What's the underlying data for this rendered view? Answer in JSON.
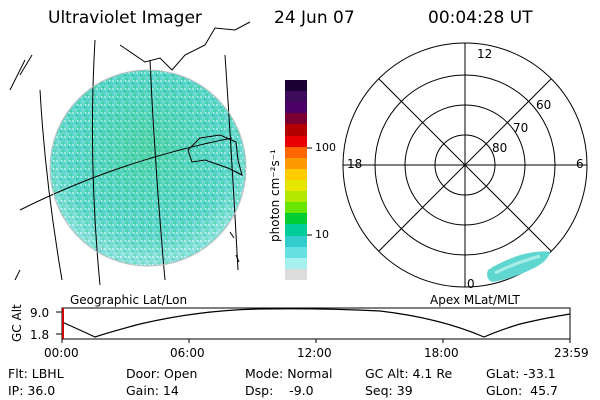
{
  "header": {
    "title": "Ultraviolet Imager",
    "date": "24 Jun 07",
    "time": "00:04:28 UT"
  },
  "left_panel": {
    "caption": "Geographic Lat/Lon"
  },
  "colorbar": {
    "unit_label": "photon cm⁻²s⁻¹",
    "ticks": [
      "100",
      "10"
    ],
    "colors": [
      "#1a0033",
      "#3d0a5c",
      "#4a0066",
      "#7a0033",
      "#b30000",
      "#e60000",
      "#ff6600",
      "#ff9900",
      "#ffcc00",
      "#e6e600",
      "#b3e600",
      "#66e600",
      "#00cc33",
      "#00cc99",
      "#33cccc",
      "#66e0e0",
      "#a6f0f0",
      "#dcdcdc"
    ]
  },
  "polar": {
    "caption": "Apex MLat/MLT",
    "hour_labels": {
      "top": "12",
      "left": "18",
      "right": "6",
      "bottom": "0"
    },
    "lat_labels": [
      "60",
      "70",
      "80"
    ]
  },
  "altitude_plot": {
    "ylabel": "GC Alt",
    "yticks": [
      "9.0",
      "1.8"
    ],
    "xticks": [
      "00:00",
      "06:00",
      "12:00",
      "18:00",
      "23:59"
    ]
  },
  "status": {
    "flt": "Flt: LBHL",
    "door": "Door: Open",
    "mode": "Mode: Normal",
    "gc_alt": "GC Alt: 4.1 Re",
    "glat": "GLat: -33.1",
    "ip": "IP: 36.0",
    "gain": "Gain: 14",
    "dsp": "Dsp:    -9.0",
    "seq": "Seq: 39",
    "glon": "GLon:  45.7"
  }
}
